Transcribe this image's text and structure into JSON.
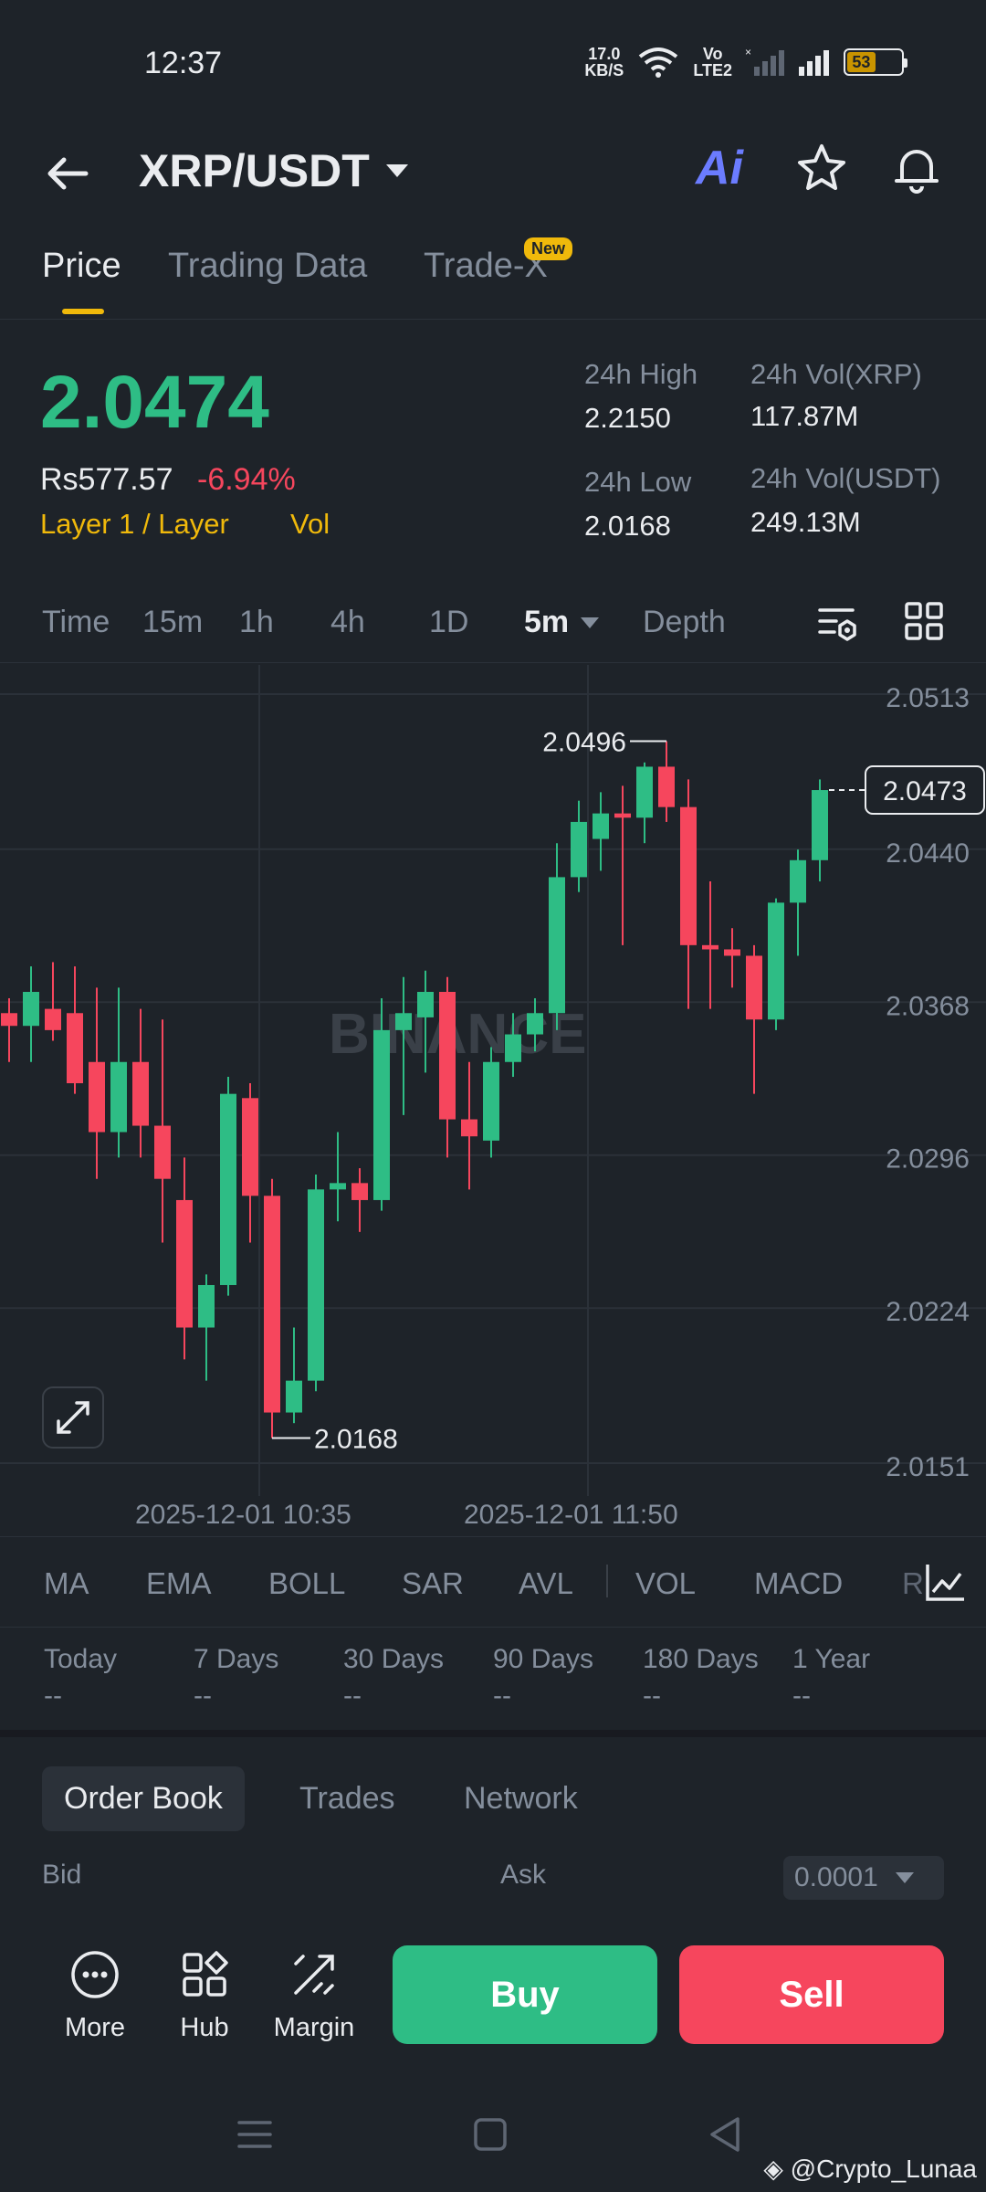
{
  "status_bar": {
    "time": "12:37",
    "net_speed_top": "17.0",
    "net_speed_bottom": "KB/S",
    "volte_top": "Vo",
    "volte_bottom": "LTE2",
    "battery": "53",
    "battery_level": 0.53
  },
  "header": {
    "pair": "XRP/USDT",
    "ai_label": "Ai"
  },
  "tabs": [
    {
      "label": "Price",
      "active": true
    },
    {
      "label": "Trading Data",
      "active": false
    },
    {
      "label": "Trade-X",
      "active": false
    }
  ],
  "tab_badge": "New",
  "price": {
    "last": "2.0474",
    "local": "Rs577.57",
    "change_pct": "-6.94%",
    "tag_category": "Layer 1 / Layer",
    "tag_vol": "Vol"
  },
  "stats": {
    "high_label": "24h High",
    "high_value": "2.2150",
    "low_label": "24h Low",
    "low_value": "2.0168",
    "vol_xrp_label": "24h Vol(XRP)",
    "vol_xrp_value": "117.87M",
    "vol_usdt_label": "24h Vol(USDT)",
    "vol_usdt_value": "249.13M"
  },
  "intervals": [
    "Time",
    "15m",
    "1h",
    "4h",
    "1D",
    "5m",
    "Depth"
  ],
  "active_interval": "5m",
  "chart_data": {
    "type": "candlestick",
    "y_ticks": [
      "2.0513",
      "2.0440",
      "2.0368",
      "2.0296",
      "2.0224",
      "2.0151"
    ],
    "ylim": [
      2.0151,
      2.0513
    ],
    "current_price_label": "2.0473",
    "high_marker": "2.0496",
    "low_marker": "2.0168",
    "watermark": "BINANCE",
    "x_labels": [
      "2025-12-01 10:35",
      "2025-12-01 11:50"
    ],
    "candles": [
      {
        "o": 2.0368,
        "h": 2.0375,
        "l": 2.0345,
        "c": 2.0362
      },
      {
        "o": 2.0362,
        "h": 2.039,
        "l": 2.0345,
        "c": 2.0378
      },
      {
        "o": 2.037,
        "h": 2.0392,
        "l": 2.0355,
        "c": 2.036
      },
      {
        "o": 2.0368,
        "h": 2.039,
        "l": 2.033,
        "c": 2.0335
      },
      {
        "o": 2.0345,
        "h": 2.038,
        "l": 2.029,
        "c": 2.0312
      },
      {
        "o": 2.0312,
        "h": 2.038,
        "l": 2.03,
        "c": 2.0345
      },
      {
        "o": 2.0345,
        "h": 2.037,
        "l": 2.03,
        "c": 2.0315
      },
      {
        "o": 2.0315,
        "h": 2.0365,
        "l": 2.026,
        "c": 2.029
      },
      {
        "o": 2.028,
        "h": 2.03,
        "l": 2.0205,
        "c": 2.022
      },
      {
        "o": 2.022,
        "h": 2.0245,
        "l": 2.0195,
        "c": 2.024
      },
      {
        "o": 2.024,
        "h": 2.0338,
        "l": 2.0235,
        "c": 2.033
      },
      {
        "o": 2.0328,
        "h": 2.0335,
        "l": 2.026,
        "c": 2.0282
      },
      {
        "o": 2.0282,
        "h": 2.029,
        "l": 2.0168,
        "c": 2.018
      },
      {
        "o": 2.018,
        "h": 2.022,
        "l": 2.0175,
        "c": 2.0195
      },
      {
        "o": 2.0195,
        "h": 2.0292,
        "l": 2.019,
        "c": 2.0285
      },
      {
        "o": 2.0285,
        "h": 2.0312,
        "l": 2.027,
        "c": 2.0288
      },
      {
        "o": 2.0288,
        "h": 2.0295,
        "l": 2.0265,
        "c": 2.028
      },
      {
        "o": 2.028,
        "h": 2.0375,
        "l": 2.0275,
        "c": 2.036
      },
      {
        "o": 2.036,
        "h": 2.0385,
        "l": 2.032,
        "c": 2.0368
      },
      {
        "o": 2.0366,
        "h": 2.0388,
        "l": 2.034,
        "c": 2.0378
      },
      {
        "o": 2.0378,
        "h": 2.0385,
        "l": 2.03,
        "c": 2.0318
      },
      {
        "o": 2.0318,
        "h": 2.0345,
        "l": 2.0285,
        "c": 2.031
      },
      {
        "o": 2.0308,
        "h": 2.0352,
        "l": 2.03,
        "c": 2.0345
      },
      {
        "o": 2.0345,
        "h": 2.0368,
        "l": 2.0338,
        "c": 2.0358
      },
      {
        "o": 2.0358,
        "h": 2.0375,
        "l": 2.035,
        "c": 2.0368
      },
      {
        "o": 2.0368,
        "h": 2.0448,
        "l": 2.036,
        "c": 2.0432
      },
      {
        "o": 2.0432,
        "h": 2.0468,
        "l": 2.0425,
        "c": 2.0458
      },
      {
        "o": 2.045,
        "h": 2.0472,
        "l": 2.0435,
        "c": 2.0462
      },
      {
        "o": 2.0462,
        "h": 2.0475,
        "l": 2.04,
        "c": 2.046
      },
      {
        "o": 2.046,
        "h": 2.0486,
        "l": 2.0448,
        "c": 2.0484
      },
      {
        "o": 2.0484,
        "h": 2.0496,
        "l": 2.0458,
        "c": 2.0465
      },
      {
        "o": 2.0465,
        "h": 2.0478,
        "l": 2.037,
        "c": 2.04
      },
      {
        "o": 2.04,
        "h": 2.043,
        "l": 2.037,
        "c": 2.0398
      },
      {
        "o": 2.0398,
        "h": 2.0408,
        "l": 2.038,
        "c": 2.0395
      },
      {
        "o": 2.0395,
        "h": 2.04,
        "l": 2.033,
        "c": 2.0365
      },
      {
        "o": 2.0365,
        "h": 2.0422,
        "l": 2.036,
        "c": 2.042
      },
      {
        "o": 2.042,
        "h": 2.0445,
        "l": 2.0395,
        "c": 2.044
      },
      {
        "o": 2.044,
        "h": 2.0478,
        "l": 2.043,
        "c": 2.0473
      }
    ]
  },
  "indicators": [
    "MA",
    "EMA",
    "BOLL",
    "SAR",
    "AVL",
    "VOL",
    "MACD",
    "R"
  ],
  "periods": [
    {
      "label": "Today",
      "value": "--"
    },
    {
      "label": "7 Days",
      "value": "--"
    },
    {
      "label": "30 Days",
      "value": "--"
    },
    {
      "label": "90 Days",
      "value": "--"
    },
    {
      "label": "180 Days",
      "value": "--"
    },
    {
      "label": "1 Year",
      "value": "--"
    }
  ],
  "orderbook": {
    "tabs": [
      "Order Book",
      "Trades",
      "Network"
    ],
    "bid_label": "Bid",
    "ask_label": "Ask",
    "precision": "0.0001"
  },
  "bottom": {
    "more": "More",
    "hub": "Hub",
    "margin": "Margin",
    "buy": "Buy",
    "sell": "Sell"
  },
  "watermark_user": "@Crypto_Lunaa",
  "colors": {
    "up": "#2ebd85",
    "down": "#f6465d",
    "accent": "#f0b90b",
    "bg": "#1e2329"
  }
}
